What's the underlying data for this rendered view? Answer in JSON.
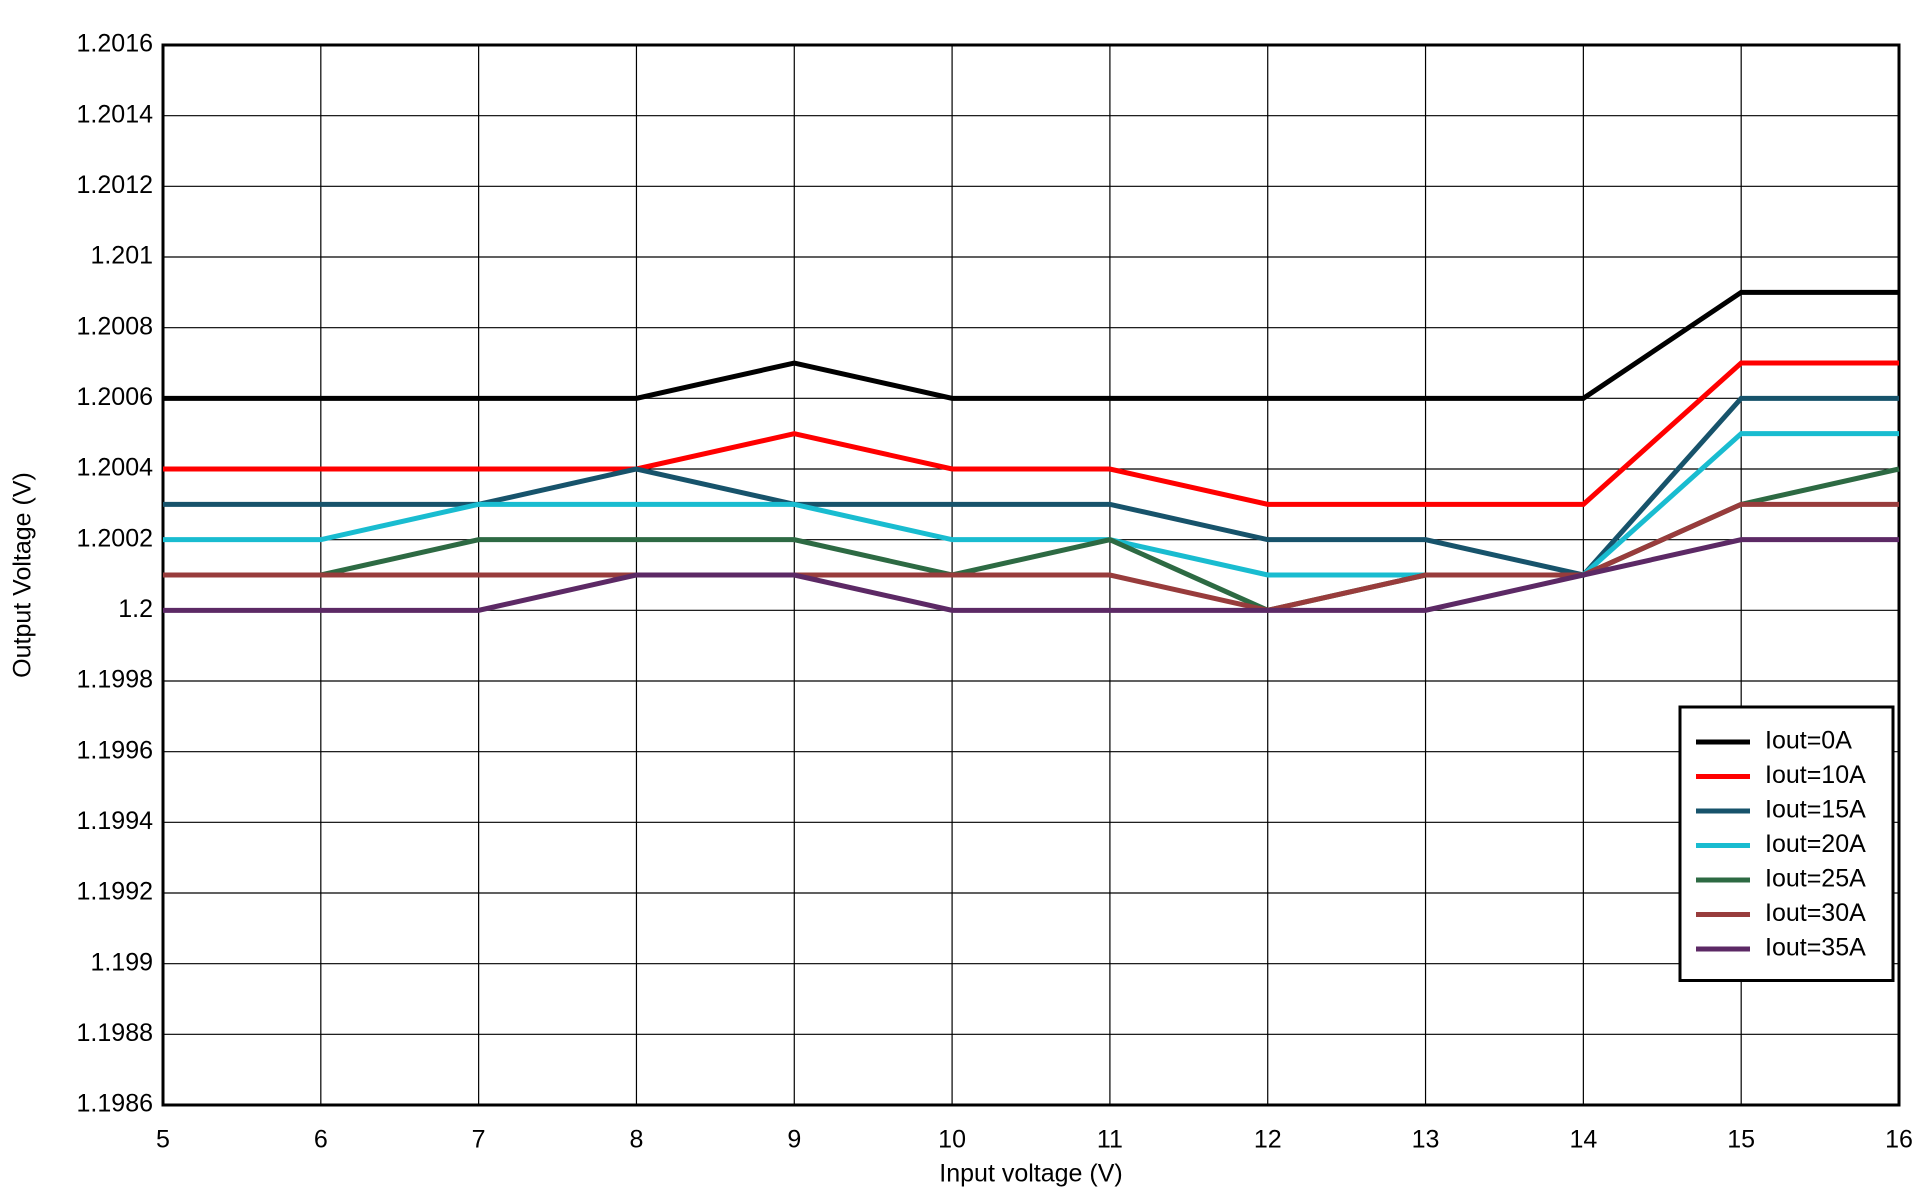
{
  "chart_data": {
    "type": "line",
    "x_label": "Input voltage (V)",
    "y_label": "Output Voltage  (V)",
    "x": [
      5,
      6,
      7,
      8,
      9,
      10,
      11,
      12,
      13,
      14,
      15,
      16
    ],
    "xlim": [
      5,
      16
    ],
    "xticks": [
      5,
      6,
      7,
      8,
      9,
      10,
      11,
      12,
      13,
      14,
      15,
      16
    ],
    "ylim": [
      1.1986,
      1.2016
    ],
    "yticks": [
      1.1986,
      1.1988,
      1.199,
      1.1992,
      1.1994,
      1.1996,
      1.1998,
      1.2,
      1.2002,
      1.2004,
      1.2006,
      1.2008,
      1.201,
      1.2012,
      1.2014,
      1.2016
    ],
    "grid": true,
    "legend": "right",
    "series": [
      {
        "name": "Iout=0A",
        "color": "#000000",
        "values": [
          1.2006,
          1.2006,
          1.2006,
          1.2006,
          1.2007,
          1.2006,
          1.2006,
          1.2006,
          1.2006,
          1.2006,
          1.2009,
          1.2009
        ]
      },
      {
        "name": "Iout=10A",
        "color": "#ff0000",
        "values": [
          1.2004,
          1.2004,
          1.2004,
          1.2004,
          1.2005,
          1.2004,
          1.2004,
          1.2003,
          1.2003,
          1.2003,
          1.2007,
          1.2007
        ]
      },
      {
        "name": "Iout=15A",
        "color": "#17536b",
        "values": [
          1.2003,
          1.2003,
          1.2003,
          1.2004,
          1.2003,
          1.2003,
          1.2003,
          1.2002,
          1.2002,
          1.2001,
          1.2006,
          1.2006
        ]
      },
      {
        "name": "Iout=20A",
        "color": "#19bcd0",
        "values": [
          1.2002,
          1.2002,
          1.2003,
          1.2003,
          1.2003,
          1.2002,
          1.2002,
          1.2001,
          1.2001,
          1.2001,
          1.2005,
          1.2005
        ]
      },
      {
        "name": "Iout=25A",
        "color": "#2d6a43",
        "values": [
          1.2001,
          1.2001,
          1.2002,
          1.2002,
          1.2002,
          1.2001,
          1.2002,
          1.2,
          1.2001,
          1.2001,
          1.2003,
          1.2004
        ]
      },
      {
        "name": "Iout=30A",
        "color": "#983c3c",
        "values": [
          1.2001,
          1.2001,
          1.2001,
          1.2001,
          1.2001,
          1.2001,
          1.2001,
          1.2,
          1.2001,
          1.2001,
          1.2003,
          1.2003
        ]
      },
      {
        "name": "Iout=35A",
        "color": "#5c2965",
        "values": [
          1.2,
          1.2,
          1.2,
          1.2001,
          1.2001,
          1.2,
          1.2,
          1.2,
          1.2,
          1.2001,
          1.2002,
          1.2002
        ]
      }
    ]
  }
}
